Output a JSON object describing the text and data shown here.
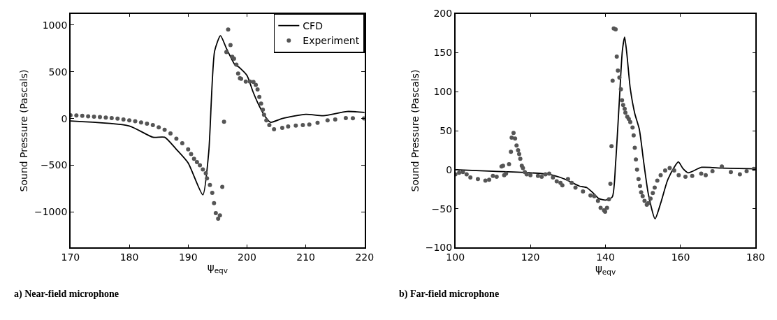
{
  "chart_data": [
    {
      "type": "line",
      "xlabel": "ψ$_{eqv}$",
      "ylabel": "Sound Pressure (Pascals)",
      "annotations": [
        "a) Near-field microphone"
      ],
      "xlim": [
        170,
        220
      ],
      "xticks": [
        170,
        180,
        190,
        200,
        210,
        220
      ],
      "ylim": [
        -1380,
        1120
      ],
      "yticks": [
        -1000,
        -500,
        0,
        500,
        1000
      ],
      "legend": "top right",
      "series": [
        {
          "name": "CFD",
          "color": "#000000",
          "line_style": "solid",
          "marker": "none",
          "x": [
            170,
            180,
            184,
            186,
            188,
            190,
            192.5,
            193.5,
            194.5,
            195.5,
            196.5,
            198,
            198.5,
            200,
            201,
            202,
            203,
            204,
            206,
            210,
            213,
            217,
            220
          ],
          "values": [
            -27,
            -80,
            -200,
            -200,
            -330,
            -475,
            -815,
            -360,
            720,
            885,
            750,
            570,
            555,
            460,
            290,
            145,
            30,
            -40,
            0,
            45,
            30,
            75,
            65
          ]
        },
        {
          "name": "Experiment",
          "type": "scatter",
          "color": "#555555",
          "marker": "circle",
          "x": [
            170,
            171,
            172,
            173,
            174,
            175,
            176,
            177,
            178,
            179,
            180,
            181,
            182,
            183,
            184,
            185,
            186,
            187,
            188,
            189,
            190,
            190.5,
            191,
            191.5,
            192,
            192.5,
            193,
            193.2,
            193.7,
            194.1,
            194.4,
            194.7,
            195.1,
            195.4,
            195.8,
            196.1,
            196.5,
            196.8,
            197.2,
            197.5,
            197.8,
            198.2,
            198.5,
            198.8,
            199.0,
            199.8,
            200.5,
            201.1,
            201.5,
            201.8,
            202.1,
            202.4,
            202.7,
            202.9,
            203.3,
            203.8,
            204.6,
            206,
            207,
            208.3,
            209.5,
            210.6,
            212,
            213.7,
            215,
            216.8,
            218,
            219.9
          ],
          "values": [
            35,
            32,
            28,
            24,
            20,
            15,
            10,
            4,
            -2,
            -10,
            -20,
            -30,
            -42,
            -55,
            -70,
            -95,
            -120,
            -160,
            -215,
            -265,
            -330,
            -380,
            -430,
            -465,
            -500,
            -545,
            -585,
            -640,
            -710,
            -795,
            -905,
            -1010,
            -1070,
            -1035,
            -730,
            -35,
            710,
            950,
            785,
            660,
            640,
            575,
            480,
            430,
            425,
            395,
            395,
            390,
            360,
            310,
            230,
            160,
            95,
            40,
            -20,
            -70,
            -115,
            -100,
            -85,
            -75,
            -70,
            -65,
            -45,
            -20,
            -10,
            5,
            3,
            0
          ]
        }
      ]
    },
    {
      "type": "line",
      "xlabel": "ψ$_{eqv}$",
      "ylabel": "Sound Pressure (Pascals)",
      "annotations": [
        "b) Far-field microphone"
      ],
      "xlim": [
        100,
        180
      ],
      "xticks": [
        100,
        120,
        140,
        160,
        180
      ],
      "ylim": [
        -100,
        200
      ],
      "yticks": [
        -100,
        -50,
        0,
        50,
        100,
        150,
        200
      ],
      "series": [
        {
          "color": "#000000",
          "line_style": "solid",
          "marker": "none",
          "x": [
            100,
            110,
            120,
            125,
            128,
            130,
            133,
            135,
            136.5,
            138.2,
            140,
            141.8,
            142.7,
            143.6,
            144.5,
            145.1,
            145.7,
            146.6,
            147.8,
            149.0,
            150.2,
            151.4,
            153.2,
            154.7,
            156.5,
            158.3,
            159.4,
            160.7,
            162,
            165.6,
            171,
            180
          ],
          "values": [
            0,
            -2,
            -4,
            -6,
            -10,
            -14,
            -21,
            -23,
            -29,
            -37,
            -39,
            -35,
            9,
            81,
            153,
            170,
            148,
            104,
            72,
            52,
            9,
            -31,
            -63,
            -43,
            -14,
            3,
            10,
            1,
            -4,
            3,
            2,
            1
          ]
        },
        {
          "type": "scatter",
          "color": "#555555",
          "marker": "circle",
          "x": [
            100,
            101,
            102,
            103,
            104,
            106,
            108,
            109,
            110,
            111,
            112.3,
            112.7,
            113,
            113.5,
            114.3,
            114.8,
            115.0,
            115.5,
            115.9,
            116.3,
            116.7,
            117,
            117.3,
            117.7,
            118,
            118.5,
            119,
            120,
            122,
            123,
            124,
            125,
            126,
            127,
            128,
            128.5,
            130,
            131,
            132,
            134,
            136,
            137,
            138,
            138.7,
            139.6,
            139.9,
            140.4,
            140.9,
            141.3,
            141.6,
            141.9,
            142.2,
            142.7,
            143.0,
            143.3,
            143.7,
            144.1,
            144.4,
            144.7,
            145.1,
            145.3,
            145.8,
            146.2,
            146.6,
            147.2,
            147.5,
            147.8,
            148.1,
            148.4,
            148.8,
            149.2,
            149.5,
            149.9,
            150.4,
            151.0,
            151.4,
            152.0,
            152.6,
            153.1,
            153.8,
            154.7,
            155.9,
            157.1,
            158.3,
            159.5,
            161.3,
            163.1,
            165.5,
            166.7,
            168.5,
            171,
            173.4,
            175.8,
            177.6,
            179.5
          ],
          "values": [
            -6,
            -4,
            -3,
            -6,
            -10,
            -12,
            -14,
            -13,
            -8,
            -9,
            4,
            5,
            -7,
            -5,
            7,
            23,
            41,
            47,
            40,
            31,
            25,
            20,
            14,
            5,
            2,
            -3,
            -6,
            -7,
            -8,
            -9,
            -6,
            -5,
            -10,
            -15,
            -17,
            -20,
            -12,
            -17,
            -23,
            -28,
            -33,
            -34,
            -40,
            -49,
            -52,
            -54,
            -49,
            -38,
            -18,
            30,
            114,
            181,
            180,
            145,
            127,
            118,
            103,
            89,
            83,
            78,
            73,
            68,
            65,
            61,
            54,
            44,
            28,
            13,
            0,
            -12,
            -21,
            -29,
            -34,
            -40,
            -45,
            -43,
            -37,
            -30,
            -23,
            -14,
            -7,
            -1,
            2,
            -1,
            -7,
            -9,
            -8,
            -5,
            -7,
            -2,
            4,
            -3,
            -6,
            -2,
            1
          ]
        }
      ]
    }
  ]
}
